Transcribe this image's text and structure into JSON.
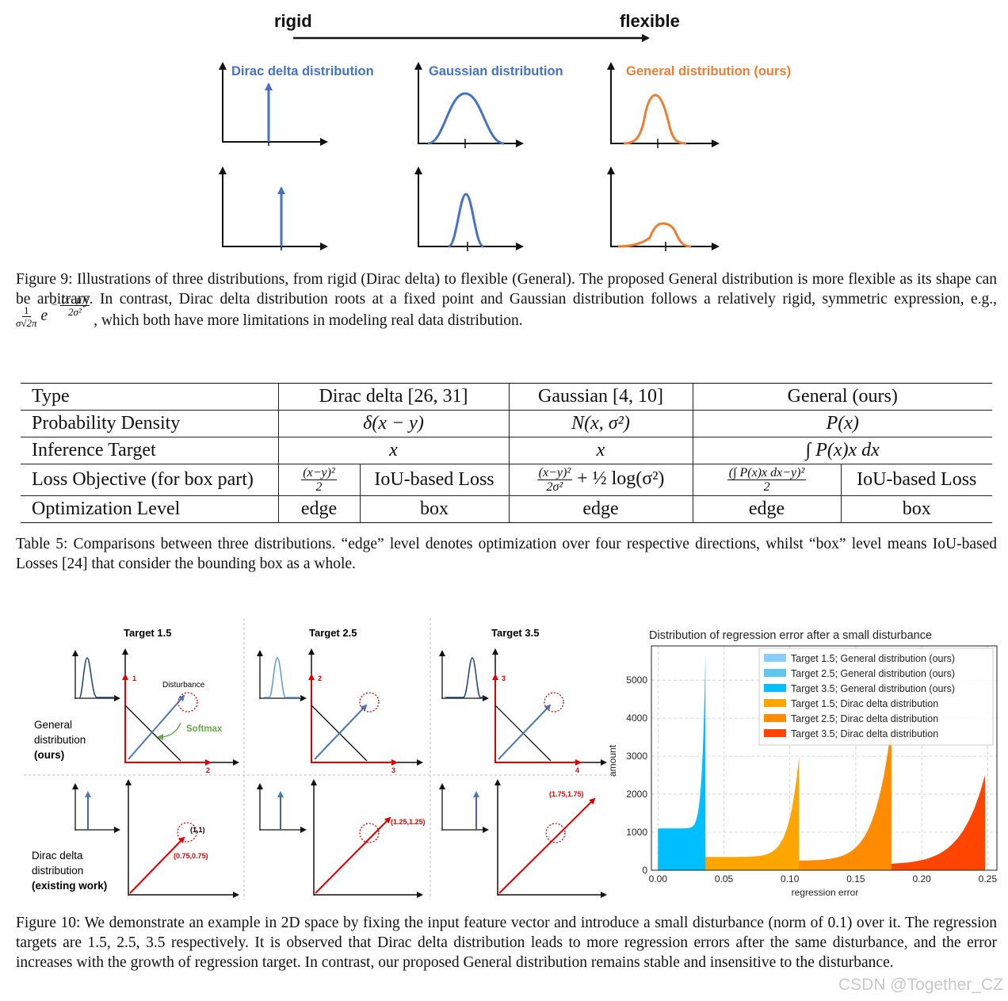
{
  "figure9": {
    "arrow_left": "rigid",
    "arrow_right": "flexible",
    "panels": [
      {
        "title": "Dirac delta distribution",
        "color": "#4472c4"
      },
      {
        "title": "Gaussian distribution",
        "color": "#4472c4"
      },
      {
        "title": "General distribution (ours)",
        "color": "#ed7d31"
      }
    ],
    "caption_part1": "Figure 9: Illustrations of three distributions, from rigid (Dirac delta) to flexible (General). The proposed General distribution is more flexible as its shape can be arbitrary. In contrast, Dirac delta distribution roots at a fixed point and Gaussian distribution follows a relatively rigid, symmetric expression, e.g.,",
    "caption_formula_prefix": "1",
    "caption_formula_den": "σ√2π",
    "caption_formula_exp_num": "(x−μ)²",
    "caption_formula_exp_den": "2σ²",
    "caption_part2": ", which both have more limitations in modeling real data distribution."
  },
  "table5": {
    "header": [
      "Type",
      "Dirac delta [26, 31]",
      "Gaussian [4, 10]",
      "General (ours)"
    ],
    "row_density": {
      "label": "Probability Density",
      "dirac": "δ(x − y)",
      "gaussian": "N(x, σ²)",
      "general": "P(x)"
    },
    "row_inference": {
      "label": "Inference Target",
      "dirac": "x",
      "gaussian": "x",
      "general": "∫ P(x)x dx"
    },
    "row_loss": {
      "label": "Loss Objective (for box part)",
      "dirac_edge_num": "(x−y)²",
      "dirac_edge_den": "2",
      "dirac_box": "IoU-based Loss",
      "gaussian_num": "(x−y)²",
      "gaussian_den": "2σ²",
      "gaussian_tail": "+ ½ log(σ²)",
      "general_edge_num": "(∫ P(x)x dx−y)²",
      "general_edge_den": "2",
      "general_box": "IoU-based Loss"
    },
    "row_opt": {
      "label": "Optimization Level",
      "dirac_edge": "edge",
      "dirac_box": "box",
      "gaussian": "edge",
      "general_edge": "edge",
      "general_box": "box"
    },
    "caption": "Table 5: Comparisons between three distributions. “edge” level denotes optimization over four respective directions, whilst “box” level means IoU-based Losses [24] that consider the bounding box as a whole."
  },
  "figure10": {
    "targets": [
      "Target 1.5",
      "Target 2.5",
      "Target 3.5"
    ],
    "row_general": [
      "General",
      "distribution",
      "(ours)"
    ],
    "row_dirac": [
      "Dirac delta",
      "distribution",
      "(existing work)"
    ],
    "disturbance_label": "Disturbance",
    "softmax_label": "Softmax",
    "axis_marks_top": [
      [
        "1",
        "2"
      ],
      [
        "2",
        "3"
      ],
      [
        "3",
        "4"
      ]
    ],
    "dirac_points": [
      [
        "(1,1)",
        "(0.75,0.75)"
      ],
      [
        "(1.25,1.25)"
      ],
      [
        "(1.75,1.75)"
      ]
    ],
    "caption": "Figure 10: We demonstrate an example in 2D space by fixing the input feature vector and introduce a small disturbance (norm of 0.1) over it. The regression targets are 1.5, 2.5, 3.5 respectively. It is observed that Dirac delta distribution leads to more regression errors after the same disturbance, and the error increases with the growth of regression target. In contrast, our proposed General distribution remains stable and insensitive to the disturbance."
  },
  "chart_data": {
    "type": "bar",
    "title": "Distribution of regression error after a small disturbance",
    "xlabel": "regression error",
    "ylabel": "amount",
    "xlim": [
      -0.005,
      0.257
    ],
    "ylim": [
      0,
      5900
    ],
    "xticks": [
      "0.00",
      "0.05",
      "0.10",
      "0.15",
      "0.20",
      "0.25"
    ],
    "yticks": [
      "0",
      "1000",
      "2000",
      "3000",
      "4000",
      "5000"
    ],
    "grid": true,
    "legend_position": "top-right",
    "series": [
      {
        "name": "Target 1.5; General distribution (ours)",
        "color": "#87cefa",
        "x_min": 0.0,
        "x_max": 0.036,
        "base": 1100,
        "peak": 5700
      },
      {
        "name": "Target 2.5; General distribution (ours)",
        "color": "#5fc6ee",
        "x_min": 0.0,
        "x_max": 0.036,
        "base": 1100,
        "peak": 5700
      },
      {
        "name": "Target 3.5; General distribution (ours)",
        "color": "#00bfff",
        "x_min": 0.0,
        "x_max": 0.036,
        "base": 1100,
        "peak": 5700
      },
      {
        "name": "Target 1.5; Dirac delta distribution",
        "color": "#ffa500",
        "x_min": 0.0,
        "x_max": 0.107,
        "base": 350,
        "peak": 3000
      },
      {
        "name": "Target 2.5; Dirac delta distribution",
        "color": "#ff8c00",
        "x_min": 0.0,
        "x_max": 0.177,
        "base": 250,
        "peak": 3800
      },
      {
        "name": "Target 3.5; Dirac delta distribution",
        "color": "#ff4500",
        "x_min": 0.0,
        "x_max": 0.248,
        "base": 150,
        "peak": 2500
      }
    ]
  },
  "watermark": "CSDN @Together_CZ"
}
